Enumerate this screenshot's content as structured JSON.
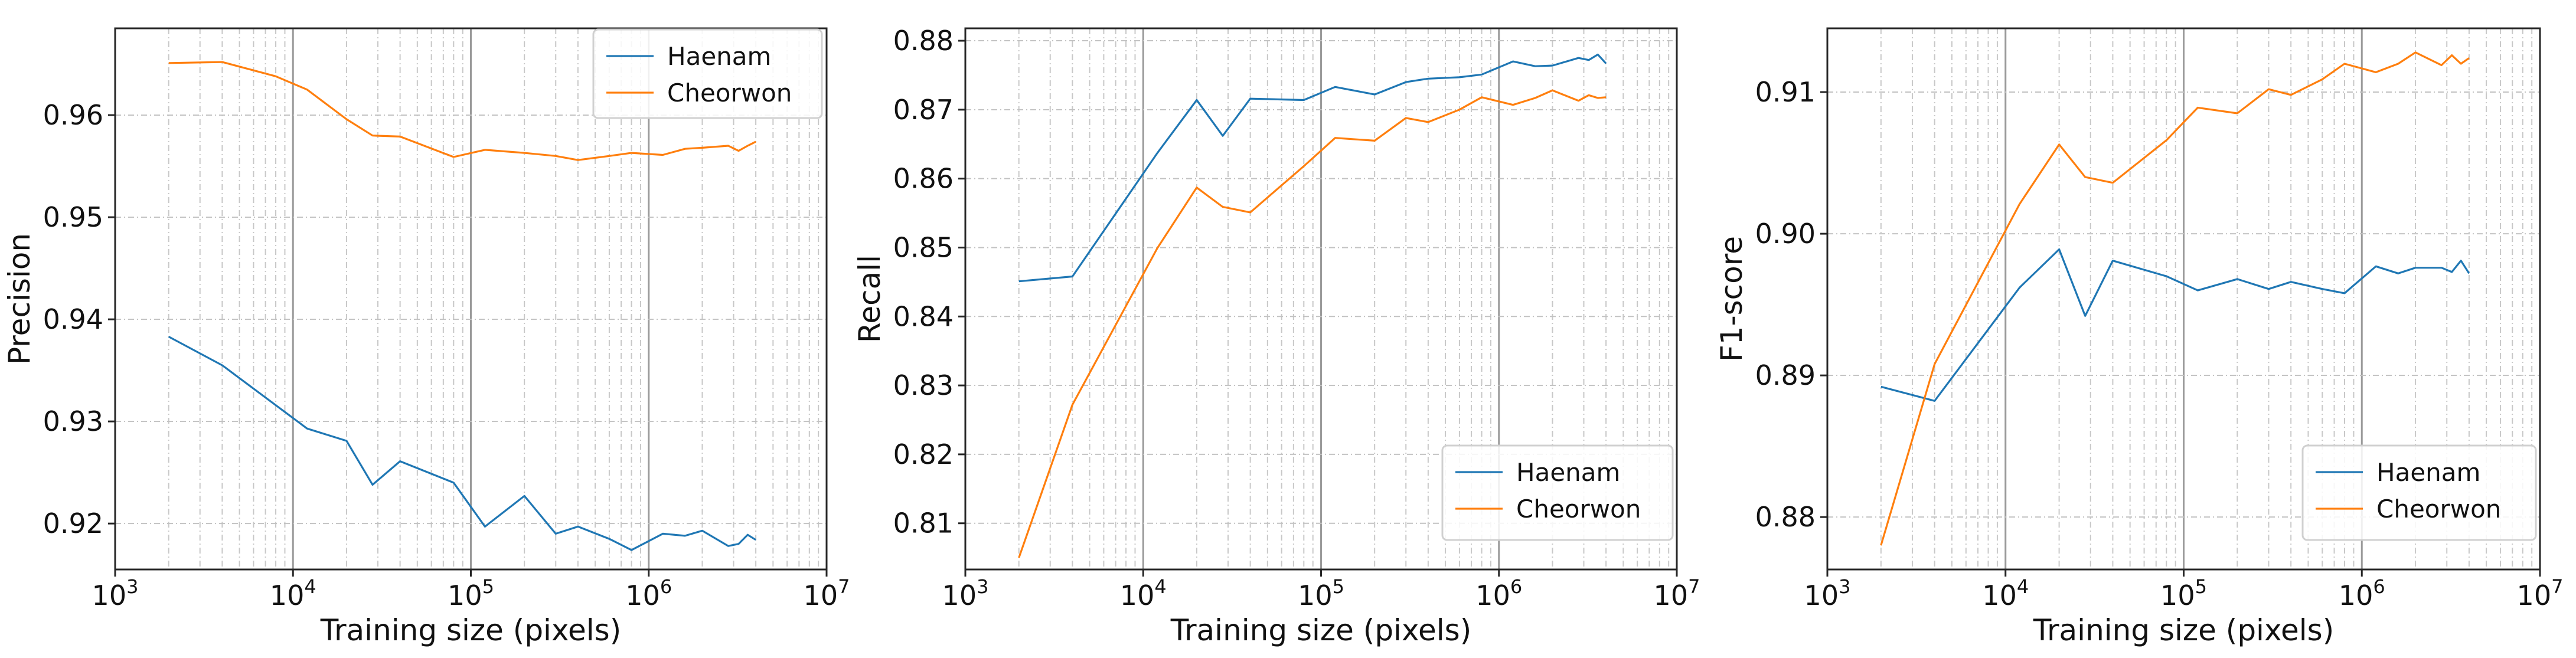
{
  "colors": {
    "haenam": "#1f77b4",
    "cheorwon": "#ff7f0e"
  },
  "chart_data": [
    {
      "type": "line",
      "xscale": "log",
      "xlabel": "Training size (pixels)",
      "ylabel": "Precision",
      "xlim": [
        1000,
        10000000
      ],
      "ylim": [
        0.9155,
        0.9685
      ],
      "yticks": [
        0.92,
        0.93,
        0.94,
        0.95,
        0.96
      ],
      "ytick_labels": [
        "0.92",
        "0.93",
        "0.94",
        "0.95",
        "0.96"
      ],
      "xticks": [
        {
          "value": 1000,
          "base": "10",
          "exp": "3"
        },
        {
          "value": 10000,
          "base": "10",
          "exp": "4"
        },
        {
          "value": 100000,
          "base": "10",
          "exp": "5"
        },
        {
          "value": 1000000,
          "base": "10",
          "exp": "6"
        },
        {
          "value": 10000000,
          "base": "10",
          "exp": "7"
        }
      ],
      "legend": "upper right",
      "series": [
        {
          "name": "Haenam",
          "color": "#1f77b4",
          "x": [
            2000,
            4000,
            12000,
            20000,
            28000,
            40000,
            80000,
            120000,
            200000,
            300000,
            400000,
            600000,
            800000,
            1200000,
            1600000,
            2000000,
            2800000,
            3200000,
            3600000,
            4000000
          ],
          "y": [
            0.9383,
            0.9355,
            0.9293,
            0.9281,
            0.9238,
            0.9261,
            0.924,
            0.9197,
            0.9227,
            0.919,
            0.9197,
            0.9185,
            0.9174,
            0.919,
            0.9188,
            0.9193,
            0.9178,
            0.918,
            0.9189,
            0.9184
          ]
        },
        {
          "name": "Cheorwon",
          "color": "#ff7f0e",
          "x": [
            2000,
            4000,
            8000,
            12000,
            20000,
            28000,
            40000,
            80000,
            120000,
            200000,
            300000,
            400000,
            600000,
            800000,
            1200000,
            1600000,
            2000000,
            2800000,
            3200000,
            3600000,
            4000000
          ],
          "y": [
            0.9651,
            0.9652,
            0.9638,
            0.9625,
            0.9596,
            0.958,
            0.9579,
            0.9559,
            0.9566,
            0.9563,
            0.956,
            0.9556,
            0.956,
            0.9563,
            0.9561,
            0.9567,
            0.9568,
            0.957,
            0.9565,
            0.957,
            0.9574
          ]
        }
      ]
    },
    {
      "type": "line",
      "xscale": "log",
      "xlabel": "Training size (pixels)",
      "ylabel": "Recall",
      "xlim": [
        1000,
        10000000
      ],
      "ylim": [
        0.8033,
        0.8818
      ],
      "yticks": [
        0.81,
        0.82,
        0.83,
        0.84,
        0.85,
        0.86,
        0.87,
        0.88
      ],
      "ytick_labels": [
        "0.81",
        "0.82",
        "0.83",
        "0.84",
        "0.85",
        "0.86",
        "0.87",
        "0.88"
      ],
      "xticks": [
        {
          "value": 1000,
          "base": "10",
          "exp": "3"
        },
        {
          "value": 10000,
          "base": "10",
          "exp": "4"
        },
        {
          "value": 100000,
          "base": "10",
          "exp": "5"
        },
        {
          "value": 1000000,
          "base": "10",
          "exp": "6"
        },
        {
          "value": 10000000,
          "base": "10",
          "exp": "7"
        }
      ],
      "legend": "lower right",
      "series": [
        {
          "name": "Haenam",
          "color": "#1f77b4",
          "x": [
            2000,
            4000,
            12000,
            20000,
            28000,
            40000,
            80000,
            120000,
            200000,
            300000,
            400000,
            600000,
            800000,
            1200000,
            1600000,
            2000000,
            2800000,
            3200000,
            3600000,
            4000000
          ],
          "y": [
            0.8451,
            0.8458,
            0.8637,
            0.8714,
            0.8662,
            0.8716,
            0.8714,
            0.8733,
            0.8722,
            0.874,
            0.8745,
            0.8747,
            0.8751,
            0.877,
            0.8763,
            0.8764,
            0.8775,
            0.8772,
            0.878,
            0.8767
          ]
        },
        {
          "name": "Cheorwon",
          "color": "#ff7f0e",
          "x": [
            2000,
            4000,
            12000,
            20000,
            28000,
            40000,
            80000,
            120000,
            200000,
            300000,
            400000,
            600000,
            800000,
            1200000,
            1600000,
            2000000,
            2800000,
            3200000,
            3600000,
            4000000
          ],
          "y": [
            0.805,
            0.8272,
            0.8499,
            0.8587,
            0.8559,
            0.8551,
            0.8618,
            0.8659,
            0.8655,
            0.8688,
            0.8682,
            0.87,
            0.8718,
            0.8707,
            0.8717,
            0.8728,
            0.8713,
            0.8721,
            0.8717,
            0.8718
          ]
        }
      ]
    },
    {
      "type": "line",
      "xscale": "log",
      "xlabel": "Training size (pixels)",
      "ylabel": "F1-score",
      "xlim": [
        1000,
        10000000
      ],
      "ylim": [
        0.8763,
        0.9145
      ],
      "yticks": [
        0.88,
        0.89,
        0.9,
        0.91
      ],
      "ytick_labels": [
        "0.88",
        "0.89",
        "0.90",
        "0.91"
      ],
      "xticks": [
        {
          "value": 1000,
          "base": "10",
          "exp": "3"
        },
        {
          "value": 10000,
          "base": "10",
          "exp": "4"
        },
        {
          "value": 100000,
          "base": "10",
          "exp": "5"
        },
        {
          "value": 1000000,
          "base": "10",
          "exp": "6"
        },
        {
          "value": 10000000,
          "base": "10",
          "exp": "7"
        }
      ],
      "legend": "lower right",
      "series": [
        {
          "name": "Haenam",
          "color": "#1f77b4",
          "x": [
            2000,
            4000,
            12000,
            20000,
            28000,
            40000,
            80000,
            120000,
            200000,
            300000,
            400000,
            600000,
            800000,
            1200000,
            1600000,
            2000000,
            2800000,
            3200000,
            3600000,
            4000000
          ],
          "y": [
            0.8892,
            0.8882,
            0.8962,
            0.8989,
            0.8942,
            0.8981,
            0.897,
            0.896,
            0.8968,
            0.8961,
            0.8966,
            0.8961,
            0.8958,
            0.8977,
            0.8972,
            0.8976,
            0.8976,
            0.8973,
            0.8981,
            0.8972
          ]
        },
        {
          "name": "Cheorwon",
          "color": "#ff7f0e",
          "x": [
            2000,
            4000,
            12000,
            20000,
            28000,
            40000,
            80000,
            120000,
            200000,
            300000,
            400000,
            600000,
            800000,
            1200000,
            1600000,
            2000000,
            2800000,
            3200000,
            3600000,
            4000000
          ],
          "y": [
            0.878,
            0.8908,
            0.9021,
            0.9063,
            0.904,
            0.9036,
            0.9066,
            0.9089,
            0.9085,
            0.9102,
            0.9098,
            0.9109,
            0.912,
            0.9114,
            0.912,
            0.9128,
            0.9119,
            0.9126,
            0.912,
            0.9124
          ]
        }
      ]
    }
  ]
}
